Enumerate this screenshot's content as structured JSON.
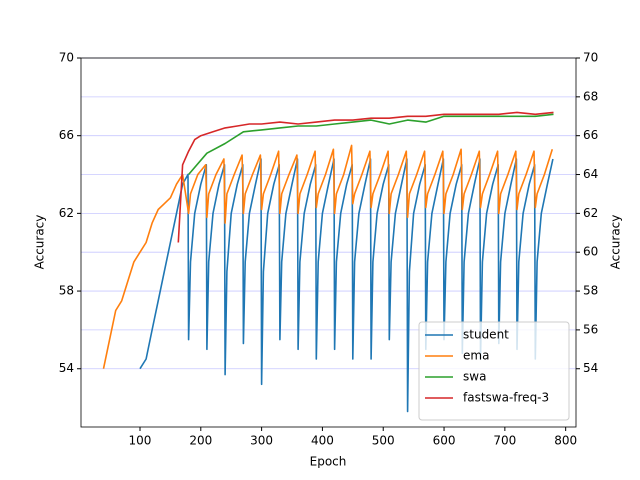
{
  "chart_data": {
    "type": "line",
    "x_label": "Epoch",
    "y_label": "Accuracy",
    "y2_label": "Accuracy",
    "xlim": [
      3,
      817
    ],
    "xticks": [
      100,
      200,
      300,
      400,
      500,
      600,
      700,
      800
    ],
    "ylim": [
      51,
      70
    ],
    "yticks": [
      54,
      58,
      62,
      66,
      70
    ],
    "y2lim": [
      51,
      70
    ],
    "y2ticks": [
      54,
      56,
      58,
      60,
      62,
      64,
      66,
      68,
      70
    ],
    "grid": "y2",
    "grid_color": "#c8c8ff",
    "legend": "lower right",
    "series": [
      {
        "name": "student",
        "color": "#1f77b4",
        "x": [
          100,
          110,
          120,
          130,
          140,
          150,
          160,
          170,
          179,
          180,
          183,
          190,
          200,
          209,
          210,
          213,
          220,
          230,
          239,
          240,
          243,
          250,
          260,
          269,
          270,
          273,
          280,
          290,
          299,
          300,
          303,
          310,
          320,
          329,
          330,
          333,
          340,
          350,
          359,
          360,
          363,
          370,
          380,
          389,
          390,
          393,
          400,
          410,
          419,
          420,
          423,
          430,
          440,
          449,
          450,
          453,
          460,
          470,
          479,
          480,
          483,
          490,
          500,
          509,
          510,
          513,
          520,
          530,
          539,
          540,
          543,
          550,
          560,
          569,
          570,
          573,
          580,
          590,
          599,
          600,
          603,
          610,
          620,
          629,
          630,
          633,
          640,
          650,
          659,
          660,
          663,
          670,
          680,
          689,
          690,
          693,
          700,
          710,
          719,
          720,
          723,
          730,
          740,
          749,
          750,
          753,
          760,
          770,
          779
        ],
        "values": [
          54,
          54.5,
          56,
          57.5,
          59,
          60.5,
          62,
          63.5,
          64,
          55.5,
          59.5,
          62,
          63.5,
          64.5,
          55,
          59.5,
          62,
          63.5,
          64.5,
          53.7,
          59,
          62,
          63.5,
          64.5,
          55.3,
          59.5,
          62,
          63.5,
          64.8,
          53.2,
          59,
          62,
          63.5,
          64.5,
          55.5,
          59.5,
          62,
          63.5,
          64.8,
          55,
          59.5,
          62,
          63.5,
          64.5,
          54.5,
          59.5,
          62,
          63.5,
          64.8,
          55,
          59.5,
          62,
          63.5,
          64.5,
          54.5,
          59.5,
          62,
          63.5,
          64.8,
          54.5,
          59.5,
          62,
          63.5,
          64.5,
          55.5,
          59.5,
          62,
          63.5,
          64.8,
          51.8,
          59,
          62,
          63.5,
          64.5,
          55,
          59.5,
          62,
          63.5,
          64.8,
          55.5,
          59.5,
          62,
          63.5,
          64.5,
          54.8,
          59.5,
          62,
          63.5,
          64.8,
          54.5,
          59.5,
          62,
          63.5,
          64.5,
          55.3,
          59.5,
          62,
          63.5,
          64.8,
          55,
          59.5,
          62,
          63.5,
          64.5,
          54.5,
          59.5,
          62,
          63.5,
          64.8
        ]
      },
      {
        "name": "ema",
        "color": "#ff7f0e",
        "x": [
          40,
          50,
          60,
          70,
          80,
          90,
          100,
          110,
          120,
          130,
          140,
          150,
          160,
          170,
          180,
          183,
          195,
          208,
          210,
          213,
          225,
          238,
          240,
          243,
          255,
          268,
          270,
          273,
          285,
          298,
          300,
          303,
          315,
          328,
          330,
          333,
          345,
          358,
          360,
          363,
          375,
          388,
          390,
          393,
          405,
          418,
          420,
          423,
          435,
          448,
          450,
          453,
          465,
          478,
          480,
          483,
          495,
          508,
          510,
          513,
          525,
          538,
          540,
          543,
          555,
          568,
          570,
          573,
          585,
          598,
          600,
          603,
          615,
          628,
          630,
          633,
          645,
          658,
          660,
          663,
          675,
          688,
          690,
          693,
          705,
          718,
          720,
          723,
          735,
          748,
          750,
          753,
          765,
          778
        ],
        "values": [
          54,
          55.5,
          57,
          57.5,
          58.5,
          59.5,
          60,
          60.5,
          61.5,
          62.2,
          62.5,
          62.8,
          63.5,
          64,
          62,
          63,
          64,
          64.5,
          61.8,
          63,
          64,
          64.8,
          61.5,
          63,
          64,
          65,
          62,
          63,
          64,
          65,
          62.2,
          63,
          64,
          65.2,
          62,
          63,
          64,
          65,
          62,
          63,
          64,
          65.2,
          62.3,
          63,
          64,
          65.3,
          62,
          63,
          64,
          65.5,
          62.5,
          63,
          64,
          65.2,
          62.3,
          63,
          64,
          65.2,
          62,
          63,
          64,
          65.2,
          61.8,
          63,
          64,
          65.2,
          62.3,
          63,
          64,
          65.2,
          62,
          63,
          64,
          65.3,
          62.2,
          63,
          64,
          65.2,
          62.3,
          63,
          64,
          65.2,
          62,
          63,
          64,
          65.2,
          62.2,
          63,
          64,
          65.2,
          62.3,
          63,
          64,
          65.3
        ]
      },
      {
        "name": "swa",
        "color": "#2ca02c",
        "x": [
          180,
          210,
          240,
          270,
          300,
          330,
          360,
          390,
          420,
          450,
          480,
          510,
          540,
          570,
          600,
          630,
          660,
          690,
          720,
          750,
          780
        ],
        "values": [
          64,
          65.1,
          65.6,
          66.2,
          66.3,
          66.4,
          66.5,
          66.5,
          66.6,
          66.7,
          66.8,
          66.6,
          66.8,
          66.7,
          67,
          67,
          67,
          67,
          67,
          67,
          67.1
        ]
      },
      {
        "name": "fastswa-freq-3",
        "color": "#d62728",
        "x": [
          163,
          170,
          180,
          190,
          200,
          220,
          240,
          260,
          280,
          300,
          330,
          360,
          390,
          420,
          450,
          480,
          510,
          540,
          570,
          600,
          630,
          660,
          690,
          720,
          750,
          780
        ],
        "values": [
          60.5,
          64.5,
          65.2,
          65.8,
          66,
          66.2,
          66.4,
          66.5,
          66.6,
          66.6,
          66.7,
          66.6,
          66.7,
          66.8,
          66.8,
          66.9,
          66.9,
          67,
          67,
          67.1,
          67.1,
          67.1,
          67.1,
          67.2,
          67.1,
          67.2
        ]
      }
    ]
  }
}
